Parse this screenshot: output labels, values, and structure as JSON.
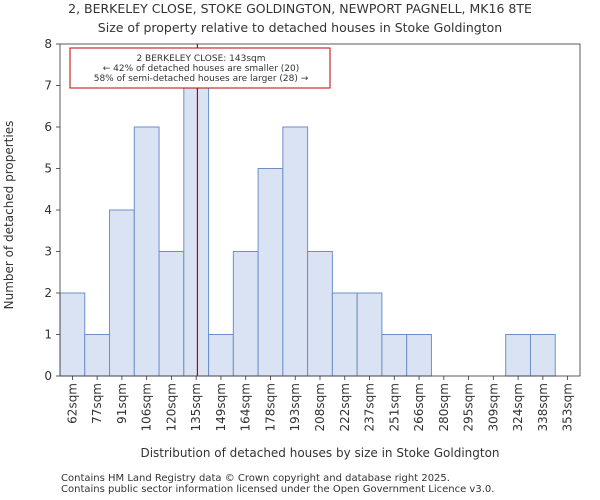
{
  "chart_data": {
    "type": "bar",
    "title": "2, BERKELEY CLOSE, STOKE GOLDINGTON, NEWPORT PAGNELL, MK16 8TE",
    "subtitle": "Size of property relative to detached houses in Stoke Goldington",
    "xlabel": "Distribution of detached houses by size in Stoke Goldington",
    "ylabel": "Number of detached properties",
    "categories": [
      "62sqm",
      "77sqm",
      "91sqm",
      "106sqm",
      "120sqm",
      "135sqm",
      "149sqm",
      "164sqm",
      "178sqm",
      "193sqm",
      "208sqm",
      "222sqm",
      "237sqm",
      "251sqm",
      "266sqm",
      "280sqm",
      "295sqm",
      "309sqm",
      "324sqm",
      "338sqm",
      "353sqm"
    ],
    "values": [
      2,
      1,
      4,
      6,
      3,
      7,
      1,
      3,
      5,
      6,
      3,
      2,
      2,
      1,
      1,
      0,
      0,
      0,
      1,
      1,
      0
    ],
    "ylim": [
      0,
      8
    ],
    "yticks": [
      0,
      1,
      2,
      3,
      4,
      5,
      6,
      7,
      8
    ],
    "grid": false,
    "bar_fill": "#dae3f3",
    "bar_edge": "#6d8fc9",
    "marker": {
      "value_sqm": 143,
      "category_position": 5.55,
      "color": "#c00000",
      "annotation": [
        "2 BERKELEY CLOSE: 143sqm",
        "← 42% of detached houses are smaller (20)",
        "58% of semi-detached houses are larger (28) →"
      ]
    }
  },
  "footer": [
    "Contains HM Land Registry data © Crown copyright and database right 2025.",
    "Contains public sector information licensed under the Open Government Licence v3.0."
  ]
}
